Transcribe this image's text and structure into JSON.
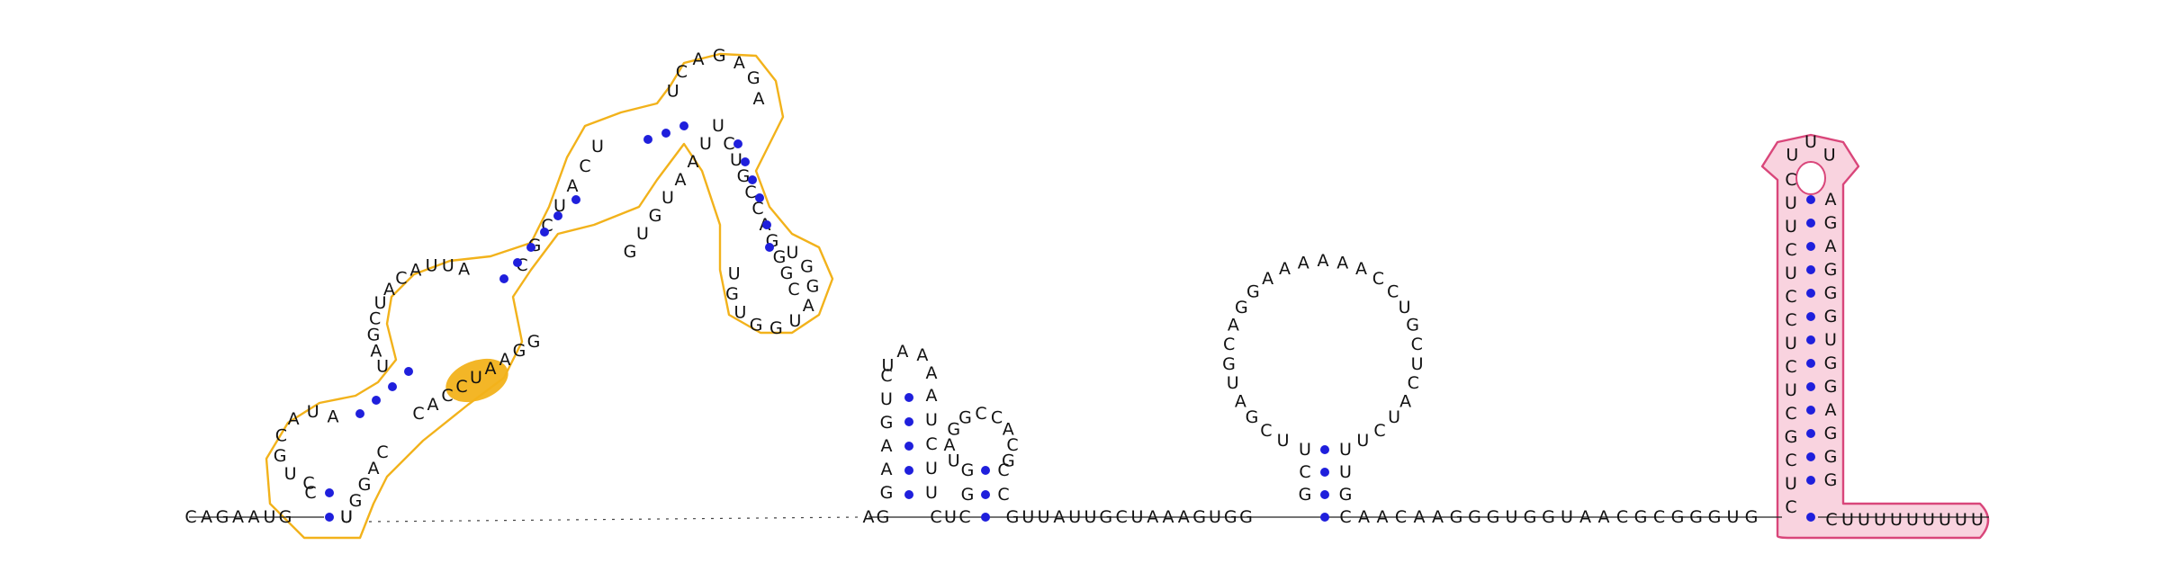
{
  "colors": {
    "base_pair": "#1f1fdc",
    "backbone": "#222222",
    "domain_gold_stroke": "#f2b21b",
    "domain_gold_fill": "#f2b21b",
    "domain_pink_stroke": "#d9467a",
    "domain_pink_fill": "#f9d3df",
    "text": "#111111"
  },
  "strands": {
    "five_prime_tail": "CAGAAUG",
    "gold_stem_left": "C",
    "gold_hairpin1_loop": "CUGCAUA",
    "gold_hairpin1_right": "UGGAC",
    "gold_interior_upper": "UAGCUACAUUA",
    "gold_interior_lower_right": "CACCUAAGG",
    "gold_upper_stem": "CGCUACU",
    "gold_upper_bulge": "GUGUAAUU",
    "gold_loop_top": "UCAGAGA",
    "gold_right_arm": "CUGCCAGGGC",
    "gold_small_loop": "UGGAUGGUGU",
    "gap_label": "dashed linker",
    "hairpin2": "GAAGUCUAAAAUUCUC",
    "hairpin3": "UAGGCCACGCGGCUC",
    "mid_linker": "GUUAUUGCUAAAGUGG",
    "big_loop_left": "UCGAUGCAGGA",
    "big_loop_top": "AAAAAC",
    "big_loop_right": "CUGCUCAUCU",
    "big_loop_stem": "UCGGUU",
    "post_linker": "CAACAAGGGUGGUAACGCGGGUG",
    "pink_left": "CUUCUCCUCUCGCUC",
    "pink_loop": "UUU",
    "pink_right": "AGAGGGUGGAGGG",
    "three_prime_tail": "CUUUUUUUUU"
  }
}
